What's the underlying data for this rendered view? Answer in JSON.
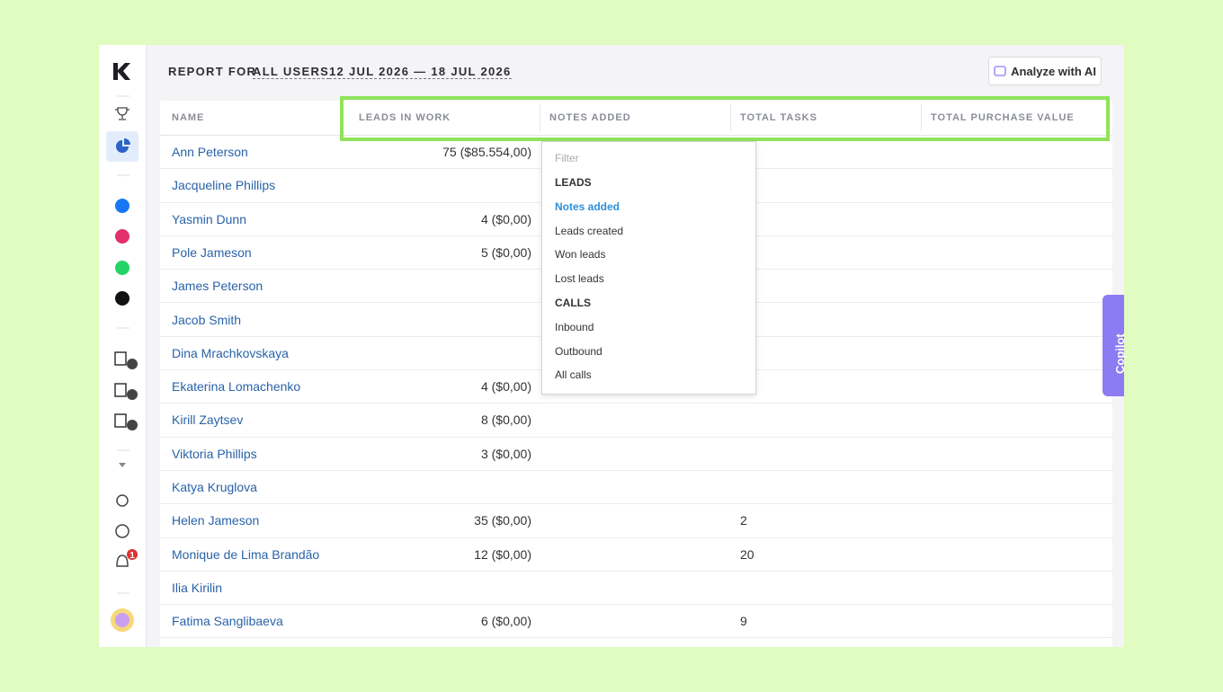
{
  "header": {
    "report_for": "REPORT FOR",
    "users": "ALL USERS",
    "date_range": "12 JUL 2026 — 18 JUL 2026",
    "analyze_button": "Analyze with AI"
  },
  "table": {
    "columns": [
      "NAME",
      "LEADS IN WORK",
      "NOTES ADDED",
      "TOTAL TASKS",
      "TOTAL PURCHASE VALUE"
    ],
    "rows": [
      {
        "name": "Ann Peterson",
        "leads_in_work": "75 ($85.554,00)"
      },
      {
        "name": "Jacqueline Phillips"
      },
      {
        "name": "Yasmin Dunn",
        "leads_in_work": "4 ($0,00)"
      },
      {
        "name": "Pole Jameson",
        "leads_in_work": "5 ($0,00)"
      },
      {
        "name": "James Peterson"
      },
      {
        "name": "Jacob Smith"
      },
      {
        "name": "Dina Mrachkovskaya"
      },
      {
        "name": "Ekaterina Lomachenko",
        "leads_in_work": "4 ($0,00)"
      },
      {
        "name": "Kirill Zaytsev",
        "leads_in_work": "8 ($0,00)"
      },
      {
        "name": "Viktoria Phillips",
        "leads_in_work": "3 ($0,00)"
      },
      {
        "name": "Katya Kruglova"
      },
      {
        "name": "Helen Jameson",
        "leads_in_work": "35 ($0,00)",
        "total_tasks": "2"
      },
      {
        "name": "Monique de Lima Brandão",
        "leads_in_work": "12 ($0,00)",
        "total_tasks": "20"
      },
      {
        "name": "Ilia Kirilin"
      },
      {
        "name": "Fatima Sanglibaeva",
        "leads_in_work": "6 ($0,00)",
        "total_tasks": "9"
      }
    ]
  },
  "dropdown": {
    "placeholder": "Filter",
    "items": [
      {
        "label": "LEADS",
        "kind": "heading"
      },
      {
        "label": "Notes added",
        "kind": "selected"
      },
      {
        "label": "Leads created",
        "kind": "option"
      },
      {
        "label": "Won leads",
        "kind": "option"
      },
      {
        "label": "Lost leads",
        "kind": "option"
      },
      {
        "label": "CALLS",
        "kind": "heading"
      },
      {
        "label": "Inbound",
        "kind": "option"
      },
      {
        "label": "Outbound",
        "kind": "option"
      },
      {
        "label": "All calls",
        "kind": "option"
      }
    ]
  },
  "copilot": "Copilot",
  "sidebar": {
    "notification_count": "1"
  }
}
